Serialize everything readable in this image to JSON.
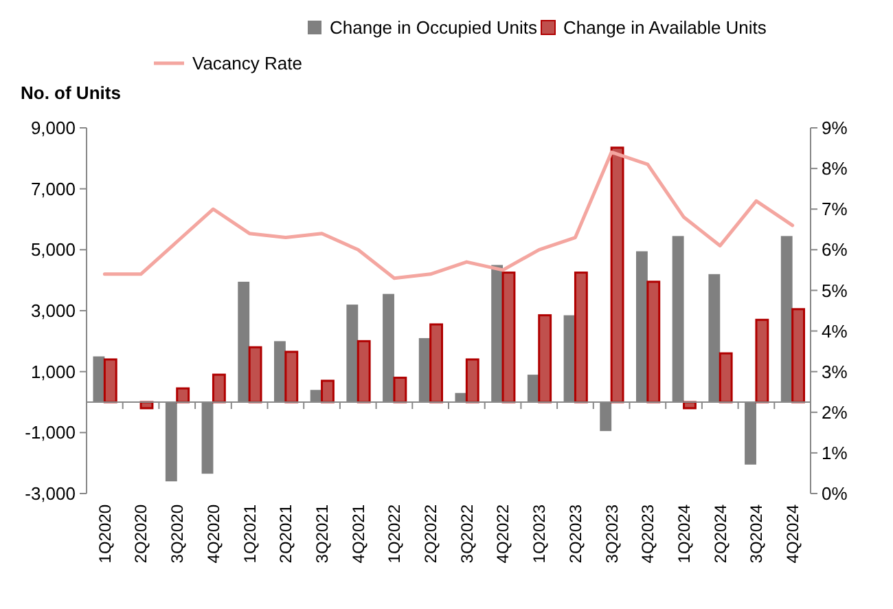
{
  "chart_data": {
    "type": "bar",
    "ylabel": "No. of Units",
    "categories": [
      "1Q2020",
      "2Q2020",
      "3Q2020",
      "4Q2020",
      "1Q2021",
      "2Q2021",
      "3Q2021",
      "4Q2021",
      "1Q2022",
      "2Q2022",
      "3Q2022",
      "4Q2022",
      "1Q2023",
      "2Q2023",
      "3Q2023",
      "4Q2023",
      "1Q2024",
      "2Q2024",
      "3Q2024",
      "4Q2024"
    ],
    "series": [
      {
        "name": "Change in Occupied Units",
        "color": "#808080",
        "values": [
          1500,
          null,
          -2600,
          -2350,
          3950,
          2000,
          400,
          3200,
          3550,
          2100,
          300,
          4500,
          900,
          2850,
          -950,
          4950,
          5450,
          4200,
          -2050,
          5450
        ]
      },
      {
        "name": "Change in Available Units",
        "color": "#c0504d",
        "values": [
          1400,
          -200,
          450,
          900,
          1800,
          1650,
          700,
          2000,
          800,
          2550,
          1400,
          4250,
          2850,
          4250,
          8350,
          3950,
          -200,
          1600,
          2700,
          3050
        ]
      },
      {
        "name": "Vacancy Rate",
        "type": "line",
        "axis": "y2",
        "color": "#f4a6a0",
        "values": [
          5.4,
          5.4,
          6.2,
          7.0,
          6.4,
          6.3,
          6.4,
          6.0,
          5.3,
          5.4,
          5.7,
          5.5,
          6.0,
          6.3,
          8.4,
          8.1,
          6.8,
          6.1,
          7.2,
          6.6
        ]
      }
    ],
    "ylim": [
      -3000,
      9000
    ],
    "yticks": [
      {
        "value": -3000,
        "label": "-3,000"
      },
      {
        "value": -1000,
        "label": "-1,000"
      },
      {
        "value": 1000,
        "label": "1,000"
      },
      {
        "value": 3000,
        "label": "3,000"
      },
      {
        "value": 5000,
        "label": "5,000"
      },
      {
        "value": 7000,
        "label": "7,000"
      },
      {
        "value": 9000,
        "label": "9,000"
      }
    ],
    "y2lim": [
      0,
      9
    ],
    "y2ticks": [
      {
        "value": 0,
        "label": "0%"
      },
      {
        "value": 1,
        "label": "1%"
      },
      {
        "value": 2,
        "label": "2%"
      },
      {
        "value": 3,
        "label": "3%"
      },
      {
        "value": 4,
        "label": "4%"
      },
      {
        "value": 5,
        "label": "5%"
      },
      {
        "value": 6,
        "label": "6%"
      },
      {
        "value": 7,
        "label": "7%"
      },
      {
        "value": 8,
        "label": "8%"
      },
      {
        "value": 9,
        "label": "9%"
      }
    ],
    "grid": false,
    "legend": "top"
  }
}
